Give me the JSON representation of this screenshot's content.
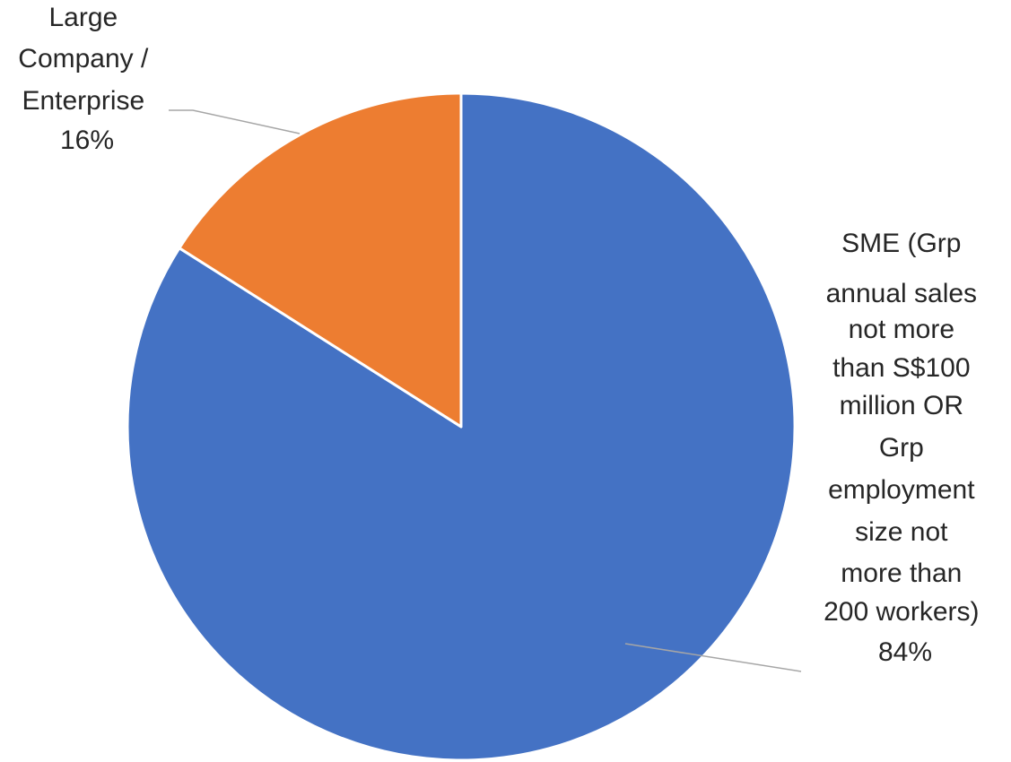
{
  "chart_data": {
    "type": "pie",
    "title": "",
    "start_angle_deg": 0,
    "direction": "clockwise",
    "slices": [
      {
        "label_lines": [
          "SME (Grp",
          "annual sales",
          "not more",
          "than S$100",
          "million OR",
          "Grp",
          "employment",
          "size not",
          "more than",
          "200 workers)"
        ],
        "percent_label": "84%",
        "value": 84,
        "color": "#4472C4",
        "label_side": "right"
      },
      {
        "label_lines": [
          "Large",
          "Company /",
          "Enterprise"
        ],
        "percent_label": "16%",
        "value": 16,
        "color": "#ED7D31",
        "label_side": "top-left"
      }
    ]
  }
}
